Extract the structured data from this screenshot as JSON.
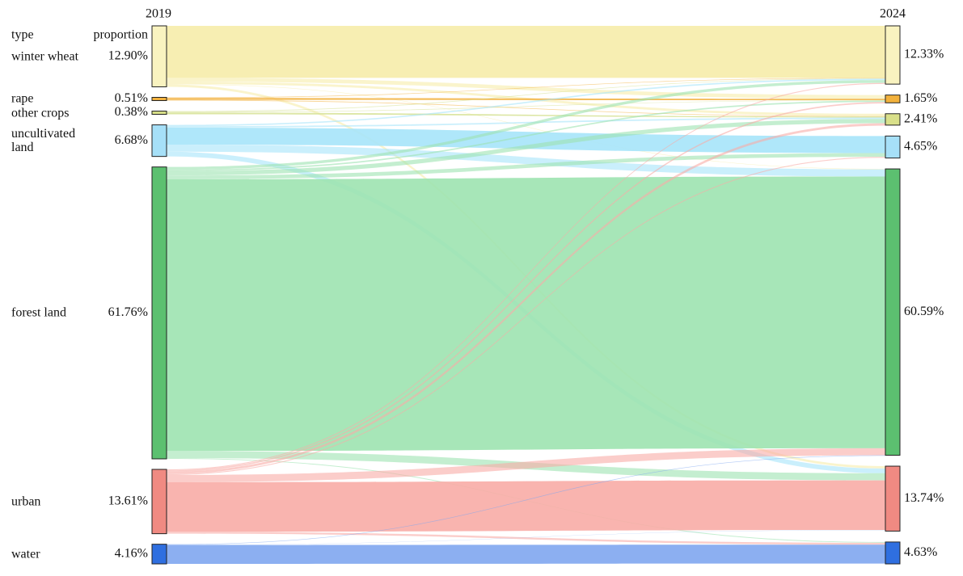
{
  "chart_data": {
    "type": "sankey",
    "columns": [
      "2019",
      "2024"
    ],
    "header": [
      "type",
      "proportion"
    ],
    "categories": [
      "winter wheat",
      "rape",
      "other crops",
      "uncultivated land",
      "forest land",
      "urban",
      "water"
    ],
    "colors": [
      "#f9f3c0",
      "#f2b13c",
      "#d9e08a",
      "#a6e0f8",
      "#5cc070",
      "#f08a82",
      "#2f6fe0"
    ],
    "link_colors": [
      "#f6ecaa",
      "#f3b64a",
      "#d8e39a",
      "#a6e4fa",
      "#9de3b0",
      "#f8aca6",
      "#7fa6f0"
    ],
    "source": {
      "values": [
        12.9,
        0.51,
        0.38,
        6.68,
        61.76,
        13.61,
        4.16
      ],
      "value_labels": [
        "12.90%",
        "0.51%",
        "0.38%",
        "6.68%",
        "61.76%",
        "13.61%",
        "4.16%"
      ]
    },
    "target": {
      "values": [
        12.33,
        1.65,
        2.41,
        4.65,
        60.59,
        13.74,
        4.63
      ],
      "value_labels": [
        "12.33%",
        "1.65%",
        "2.41%",
        "4.65%",
        "60.59%",
        "13.74%",
        "4.63%"
      ]
    },
    "links": [
      {
        "source": 0,
        "target": 0,
        "value": 11.0
      },
      {
        "source": 0,
        "target": 1,
        "value": 0.8
      },
      {
        "source": 0,
        "target": 2,
        "value": 0.5
      },
      {
        "source": 0,
        "target": 4,
        "value": 0.1
      },
      {
        "source": 0,
        "target": 5,
        "value": 0.5
      },
      {
        "source": 1,
        "target": 0,
        "value": 0.1
      },
      {
        "source": 1,
        "target": 1,
        "value": 0.3
      },
      {
        "source": 1,
        "target": 2,
        "value": 0.11
      },
      {
        "source": 2,
        "target": 0,
        "value": 0.1
      },
      {
        "source": 2,
        "target": 1,
        "value": 0.08
      },
      {
        "source": 2,
        "target": 2,
        "value": 0.2
      },
      {
        "source": 3,
        "target": 0,
        "value": 0.28
      },
      {
        "source": 3,
        "target": 2,
        "value": 0.3
      },
      {
        "source": 3,
        "target": 3,
        "value": 3.6
      },
      {
        "source": 3,
        "target": 4,
        "value": 1.5
      },
      {
        "source": 3,
        "target": 5,
        "value": 1.0
      },
      {
        "source": 4,
        "target": 0,
        "value": 0.6
      },
      {
        "source": 4,
        "target": 1,
        "value": 0.3
      },
      {
        "source": 4,
        "target": 2,
        "value": 0.9
      },
      {
        "source": 4,
        "target": 3,
        "value": 0.8
      },
      {
        "source": 4,
        "target": 4,
        "value": 57.5
      },
      {
        "source": 4,
        "target": 5,
        "value": 1.5
      },
      {
        "source": 4,
        "target": 6,
        "value": 0.16
      },
      {
        "source": 5,
        "target": 0,
        "value": 0.2
      },
      {
        "source": 5,
        "target": 1,
        "value": 0.3
      },
      {
        "source": 5,
        "target": 2,
        "value": 0.5
      },
      {
        "source": 5,
        "target": 3,
        "value": 0.2
      },
      {
        "source": 5,
        "target": 4,
        "value": 1.5
      },
      {
        "source": 5,
        "target": 5,
        "value": 10.5
      },
      {
        "source": 5,
        "target": 6,
        "value": 0.41
      },
      {
        "source": 6,
        "target": 4,
        "value": 0.12
      },
      {
        "source": 6,
        "target": 5,
        "value": 0.04
      },
      {
        "source": 6,
        "target": 6,
        "value": 4.0
      }
    ]
  }
}
